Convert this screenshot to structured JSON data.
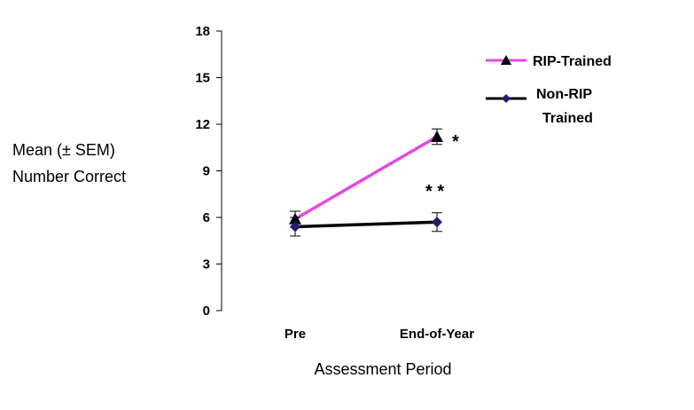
{
  "chart_data": {
    "type": "line",
    "title": "",
    "xlabel": "Assessment Period",
    "ylabel_lines": [
      "Mean (± SEM)",
      "Number Correct"
    ],
    "categories": [
      "Pre",
      "End-of-Year"
    ],
    "ylim": [
      0,
      18
    ],
    "yticks": [
      "0",
      "3",
      "6",
      "9",
      "12",
      "15",
      "18"
    ],
    "grid": false,
    "legend_position": "top-right",
    "series": [
      {
        "name": "RIP-Trained",
        "color": "#e24ae2",
        "marker": "triangle",
        "values": [
          5.9,
          11.2
        ],
        "sem": [
          0.5,
          0.5
        ]
      },
      {
        "name": "Non-RIP Trained",
        "name_lines": [
          "Non-RIP",
          "Trained"
        ],
        "color": "#000000",
        "marker": "diamond",
        "marker_color": "#1f1f6e",
        "values": [
          5.4,
          5.7
        ],
        "sem": [
          0.6,
          0.6
        ]
      }
    ],
    "annotations": [
      {
        "text": "*",
        "category": "End-of-Year",
        "y": 11.2
      },
      {
        "text": "* *",
        "category": "End-of-Year",
        "y": 8.0
      }
    ]
  }
}
